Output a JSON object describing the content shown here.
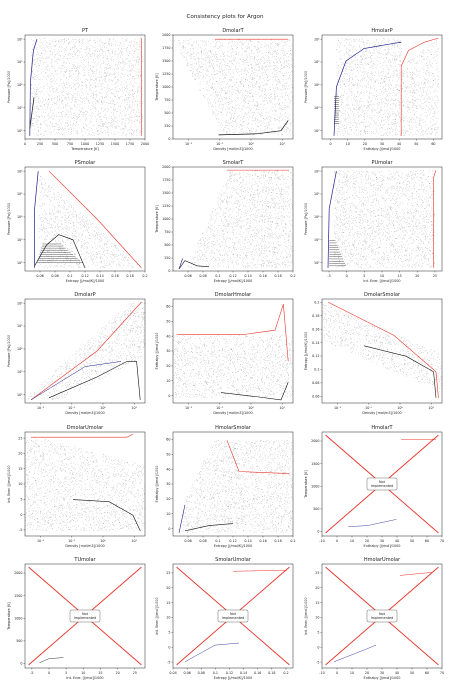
{
  "page": {
    "title": "Consistency plots for Argon"
  },
  "colors": {
    "bg": "#ffffff",
    "grid_dots": "#333333",
    "saturation_line": "#1f1f8f",
    "isoline_red": "#e8332a",
    "axis": "#222222"
  },
  "not_implemented_label": "Not\nImplemented",
  "chart_data": [
    {
      "id": "PT",
      "type": "scatter",
      "title": "PT",
      "xlabel": "Temperature [K]",
      "ylabel": "Pressure [Pa]/1000",
      "xlim": [
        0,
        2000
      ],
      "ylim_log": [
        2,
        6
      ],
      "xticks": [
        0,
        250,
        500,
        750,
        1000,
        1250,
        1500,
        1750,
        2000
      ],
      "yticks": [
        "10²",
        "10³",
        "10⁴",
        "10⁵",
        "10⁶"
      ],
      "yscale": "log"
    },
    {
      "id": "DmolarT",
      "type": "scatter",
      "title": "DmolarT",
      "xlabel": "Density [mol/m3]/1000",
      "ylabel": "Temperature [K]",
      "xscale": "log",
      "xlim_log": [
        -2.5,
        1.8
      ],
      "ylim": [
        0,
        2000
      ],
      "xticks": [
        "10⁻²",
        "10⁻¹",
        "10⁰",
        "10¹"
      ],
      "yticks": [
        0,
        250,
        500,
        750,
        1000,
        1250,
        1500,
        1750,
        2000
      ]
    },
    {
      "id": "HmolarP",
      "type": "scatter",
      "title": "HmolarP",
      "xlabel": "Enthalpy [J/mol]/1000",
      "ylabel": "Pressure [Pa]/1000",
      "xlim": [
        -5,
        65
      ],
      "ylim_log": [
        2,
        6
      ],
      "xticks": [
        0,
        10,
        20,
        30,
        40,
        50,
        60
      ],
      "yticks": [
        "10²",
        "10³",
        "10⁴",
        "10⁵",
        "10⁶"
      ],
      "yscale": "log"
    },
    {
      "id": "PSmolar",
      "type": "scatter",
      "title": "PSmolar",
      "xlabel": "Entropy [J/mol/K]/1000",
      "ylabel": "Pressure [Pa]/1000",
      "xlim": [
        0.04,
        0.2
      ],
      "ylim_log": [
        2,
        6
      ],
      "xticks": [
        0.06,
        0.08,
        0.1,
        0.12,
        0.14,
        0.16,
        0.18,
        0.2
      ],
      "yticks": [
        "10²",
        "10³",
        "10⁴",
        "10⁵",
        "10⁶"
      ],
      "yscale": "log"
    },
    {
      "id": "SmolarT",
      "type": "scatter",
      "title": "SmolarT",
      "xlabel": "Entropy [J/mol/K]/1000",
      "ylabel": "Temperature [K]",
      "xlim": [
        0.04,
        0.2
      ],
      "ylim": [
        0,
        2000
      ],
      "xticks": [
        0.06,
        0.08,
        0.1,
        0.12,
        0.14,
        0.16,
        0.18,
        0.2
      ],
      "yticks": [
        0,
        250,
        500,
        750,
        1000,
        1250,
        1500,
        1750,
        2000
      ]
    },
    {
      "id": "PUmolar",
      "type": "scatter",
      "title": "PUmolar",
      "xlabel": "Int. Ener. [J/mol]/1000",
      "ylabel": "Pressure [Pa]/1000",
      "xlim": [
        -7,
        27
      ],
      "ylim_log": [
        2,
        6
      ],
      "xticks": [
        -5,
        0,
        5,
        10,
        15,
        20,
        25
      ],
      "yticks": [
        "10²",
        "10³",
        "10⁴",
        "10⁵",
        "10⁶"
      ],
      "yscale": "log"
    },
    {
      "id": "DmolarP",
      "type": "scatter",
      "title": "DmolarP",
      "xlabel": "Density [mol/m3]/1000",
      "ylabel": "Pressure [Pa]/1000",
      "xscale": "log",
      "yscale": "log",
      "xlim_log": [
        -2.5,
        1.8
      ],
      "ylim_log": [
        2,
        6
      ],
      "xticks": [
        "10⁻²",
        "10⁻¹",
        "10⁰",
        "10¹"
      ],
      "yticks": [
        "10²",
        "10³",
        "10⁴",
        "10⁵",
        "10⁶"
      ]
    },
    {
      "id": "DmolarHmolar",
      "type": "scatter",
      "title": "DmolarHmolar",
      "xlabel": "Density [mol/m3]/1000",
      "ylabel": "Enthalpy [J/mol]/1000",
      "xscale": "log",
      "xlim_log": [
        -2.5,
        1.8
      ],
      "ylim": [
        -5,
        65
      ],
      "xticks": [
        "10⁻²",
        "10⁻¹",
        "10⁰",
        "10¹"
      ],
      "yticks": [
        0,
        10,
        20,
        30,
        40,
        50,
        60
      ]
    },
    {
      "id": "DmolarSmolar",
      "type": "scatter",
      "title": "DmolarSmolar",
      "xlabel": "Density [mol/m3]/1000",
      "ylabel": "Entropy [J/mol/K]/1000",
      "xscale": "log",
      "xlim_log": [
        -2.5,
        1.8
      ],
      "ylim": [
        0.05,
        0.205
      ],
      "xticks": [
        "10⁻²",
        "10⁻¹",
        "10⁰",
        "10¹"
      ],
      "yticks": [
        0.06,
        0.08,
        0.1,
        0.12,
        0.14,
        0.16,
        0.18,
        0.2
      ]
    },
    {
      "id": "DmolarUmolar",
      "type": "scatter",
      "title": "DmolarUmolar",
      "xlabel": "Density [mol/m3]/1000",
      "ylabel": "Int. Ener. [J/mol]/1000",
      "xscale": "log",
      "xlim_log": [
        -2.5,
        1.8
      ],
      "ylim": [
        -7,
        27
      ],
      "xticks": [
        "10⁻²",
        "10⁻¹",
        "10⁰",
        "10¹"
      ],
      "yticks": [
        -5,
        0,
        5,
        10,
        15,
        20,
        25
      ]
    },
    {
      "id": "HmolarSmolar",
      "type": "scatter",
      "title": "HmolarSmolar",
      "xlabel": "Entropy [J/mol/K]/1000",
      "ylabel": "Enthalpy [J/mol]/1000",
      "xlim": [
        0.04,
        0.2
      ],
      "ylim": [
        -5,
        65
      ],
      "xticks": [
        0.06,
        0.08,
        0.1,
        0.12,
        0.14,
        0.16,
        0.18,
        0.2
      ],
      "yticks": [
        0,
        10,
        20,
        30,
        40,
        50,
        60
      ]
    },
    {
      "id": "HmolarT",
      "type": "line",
      "title": "HmolarT",
      "xlabel": "Enthalpy [J/mol]/1000",
      "ylabel": "Temperature [K]",
      "xlim": [
        -10,
        70
      ],
      "ylim": [
        -100,
        2200
      ],
      "xticks": [
        -10,
        0,
        10,
        20,
        30,
        40,
        50,
        60,
        70
      ],
      "yticks": [
        0,
        500,
        1000,
        1500,
        2000
      ],
      "not_implemented": true
    },
    {
      "id": "TUmolar",
      "type": "line",
      "title": "TUmolar",
      "xlabel": "Int. Ener. [J/mol]/1000",
      "ylabel": "Temperature [K]",
      "xlim": [
        -7,
        28
      ],
      "ylim": [
        -100,
        2200
      ],
      "xticks": [
        -5,
        0,
        5,
        10,
        15,
        20,
        25
      ],
      "yticks": [
        0,
        500,
        1000,
        1500,
        2000
      ],
      "not_implemented": true
    },
    {
      "id": "SmolarUmolar",
      "type": "line",
      "title": "SmolarUmolar",
      "xlabel": "Entropy [J/mol/K]/1000",
      "ylabel": "Int. Ener. [J/mol]/1000",
      "xlim": [
        0.04,
        0.21
      ],
      "ylim": [
        -7,
        28
      ],
      "xticks": [
        0.04,
        0.06,
        0.08,
        0.1,
        0.12,
        0.14,
        0.16,
        0.18,
        0.2
      ],
      "yticks": [
        -5,
        0,
        5,
        10,
        15,
        20,
        25
      ],
      "not_implemented": true
    },
    {
      "id": "HmolarUmolar",
      "type": "line",
      "title": "HmolarUmolar",
      "xlabel": "Enthalpy [J/mol]/1000",
      "ylabel": "Int. Ener. [J/mol]/1000",
      "xlim": [
        -10,
        70
      ],
      "ylim": [
        -7,
        28
      ],
      "xticks": [
        -10,
        0,
        10,
        20,
        30,
        40,
        50,
        60,
        70
      ],
      "yticks": [
        -5,
        0,
        5,
        10,
        15,
        20,
        25
      ],
      "not_implemented": true
    }
  ]
}
